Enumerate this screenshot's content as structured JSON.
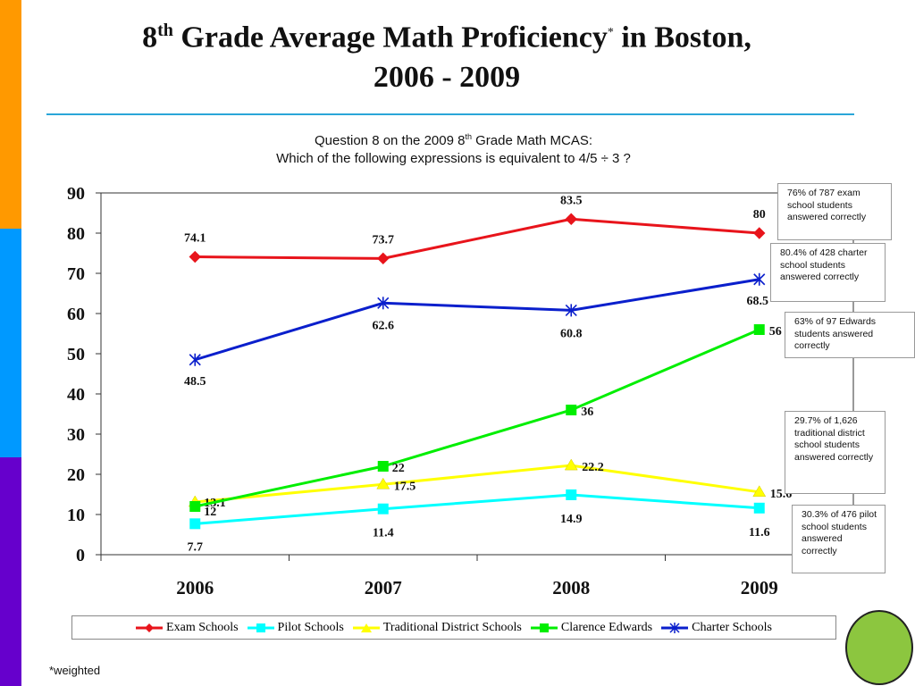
{
  "title": {
    "grade": "8",
    "grade_suffix": "th",
    "text": "Grade Average Math Proficiency",
    "asterisk": "*",
    "location": "in Boston,",
    "years": "2006 - 2009"
  },
  "subtitle": {
    "line1_a": "Question 8 on the 2009 8",
    "line1_sup": "th",
    "line1_b": " Grade Math MCAS:",
    "line2": "Which of the following expressions is equivalent to 4/5 ÷ 3 ?"
  },
  "colors": {
    "left_strip": [
      "#ff9900",
      "#0099ff",
      "#6600cc"
    ],
    "rule": "#2aa6d8",
    "circle": "#8cc63f"
  },
  "notes": [
    "76% of 787 exam school students answered correctly",
    "80.4% of 428 charter school students answered correctly",
    "63% of 97 Edwards students answered correctly",
    "29.7% of 1,626 traditional district school students answered correctly",
    "30.3% of 476 pilot school students answered correctly"
  ],
  "footnote": "*weighted",
  "chart_data": {
    "type": "line",
    "categories": [
      "2006",
      "2007",
      "2008",
      "2009"
    ],
    "ylim": [
      0,
      90
    ],
    "yticks": [
      0,
      10,
      20,
      30,
      40,
      50,
      60,
      70,
      80,
      90
    ],
    "grid": false,
    "legend_position": "bottom",
    "series": [
      {
        "name": "Exam Schools",
        "values": [
          74.1,
          73.7,
          83.5,
          80
        ],
        "color": "#e8141b",
        "marker": "diamond"
      },
      {
        "name": "Pilot Schools",
        "values": [
          7.7,
          11.4,
          14.9,
          11.6
        ],
        "color": "#00ffff",
        "marker": "square"
      },
      {
        "name": "Traditional District Schools",
        "values": [
          13.1,
          17.5,
          22.2,
          15.6
        ],
        "color": "#ffff00",
        "marker": "triangle"
      },
      {
        "name": "Clarence Edwards",
        "values": [
          12,
          22,
          36,
          56
        ],
        "color": "#00ee00",
        "marker": "square"
      },
      {
        "name": "Charter Schools",
        "values": [
          48.5,
          62.6,
          60.8,
          68.5
        ],
        "color": "#0a1fcc",
        "marker": "asterisk"
      }
    ]
  }
}
